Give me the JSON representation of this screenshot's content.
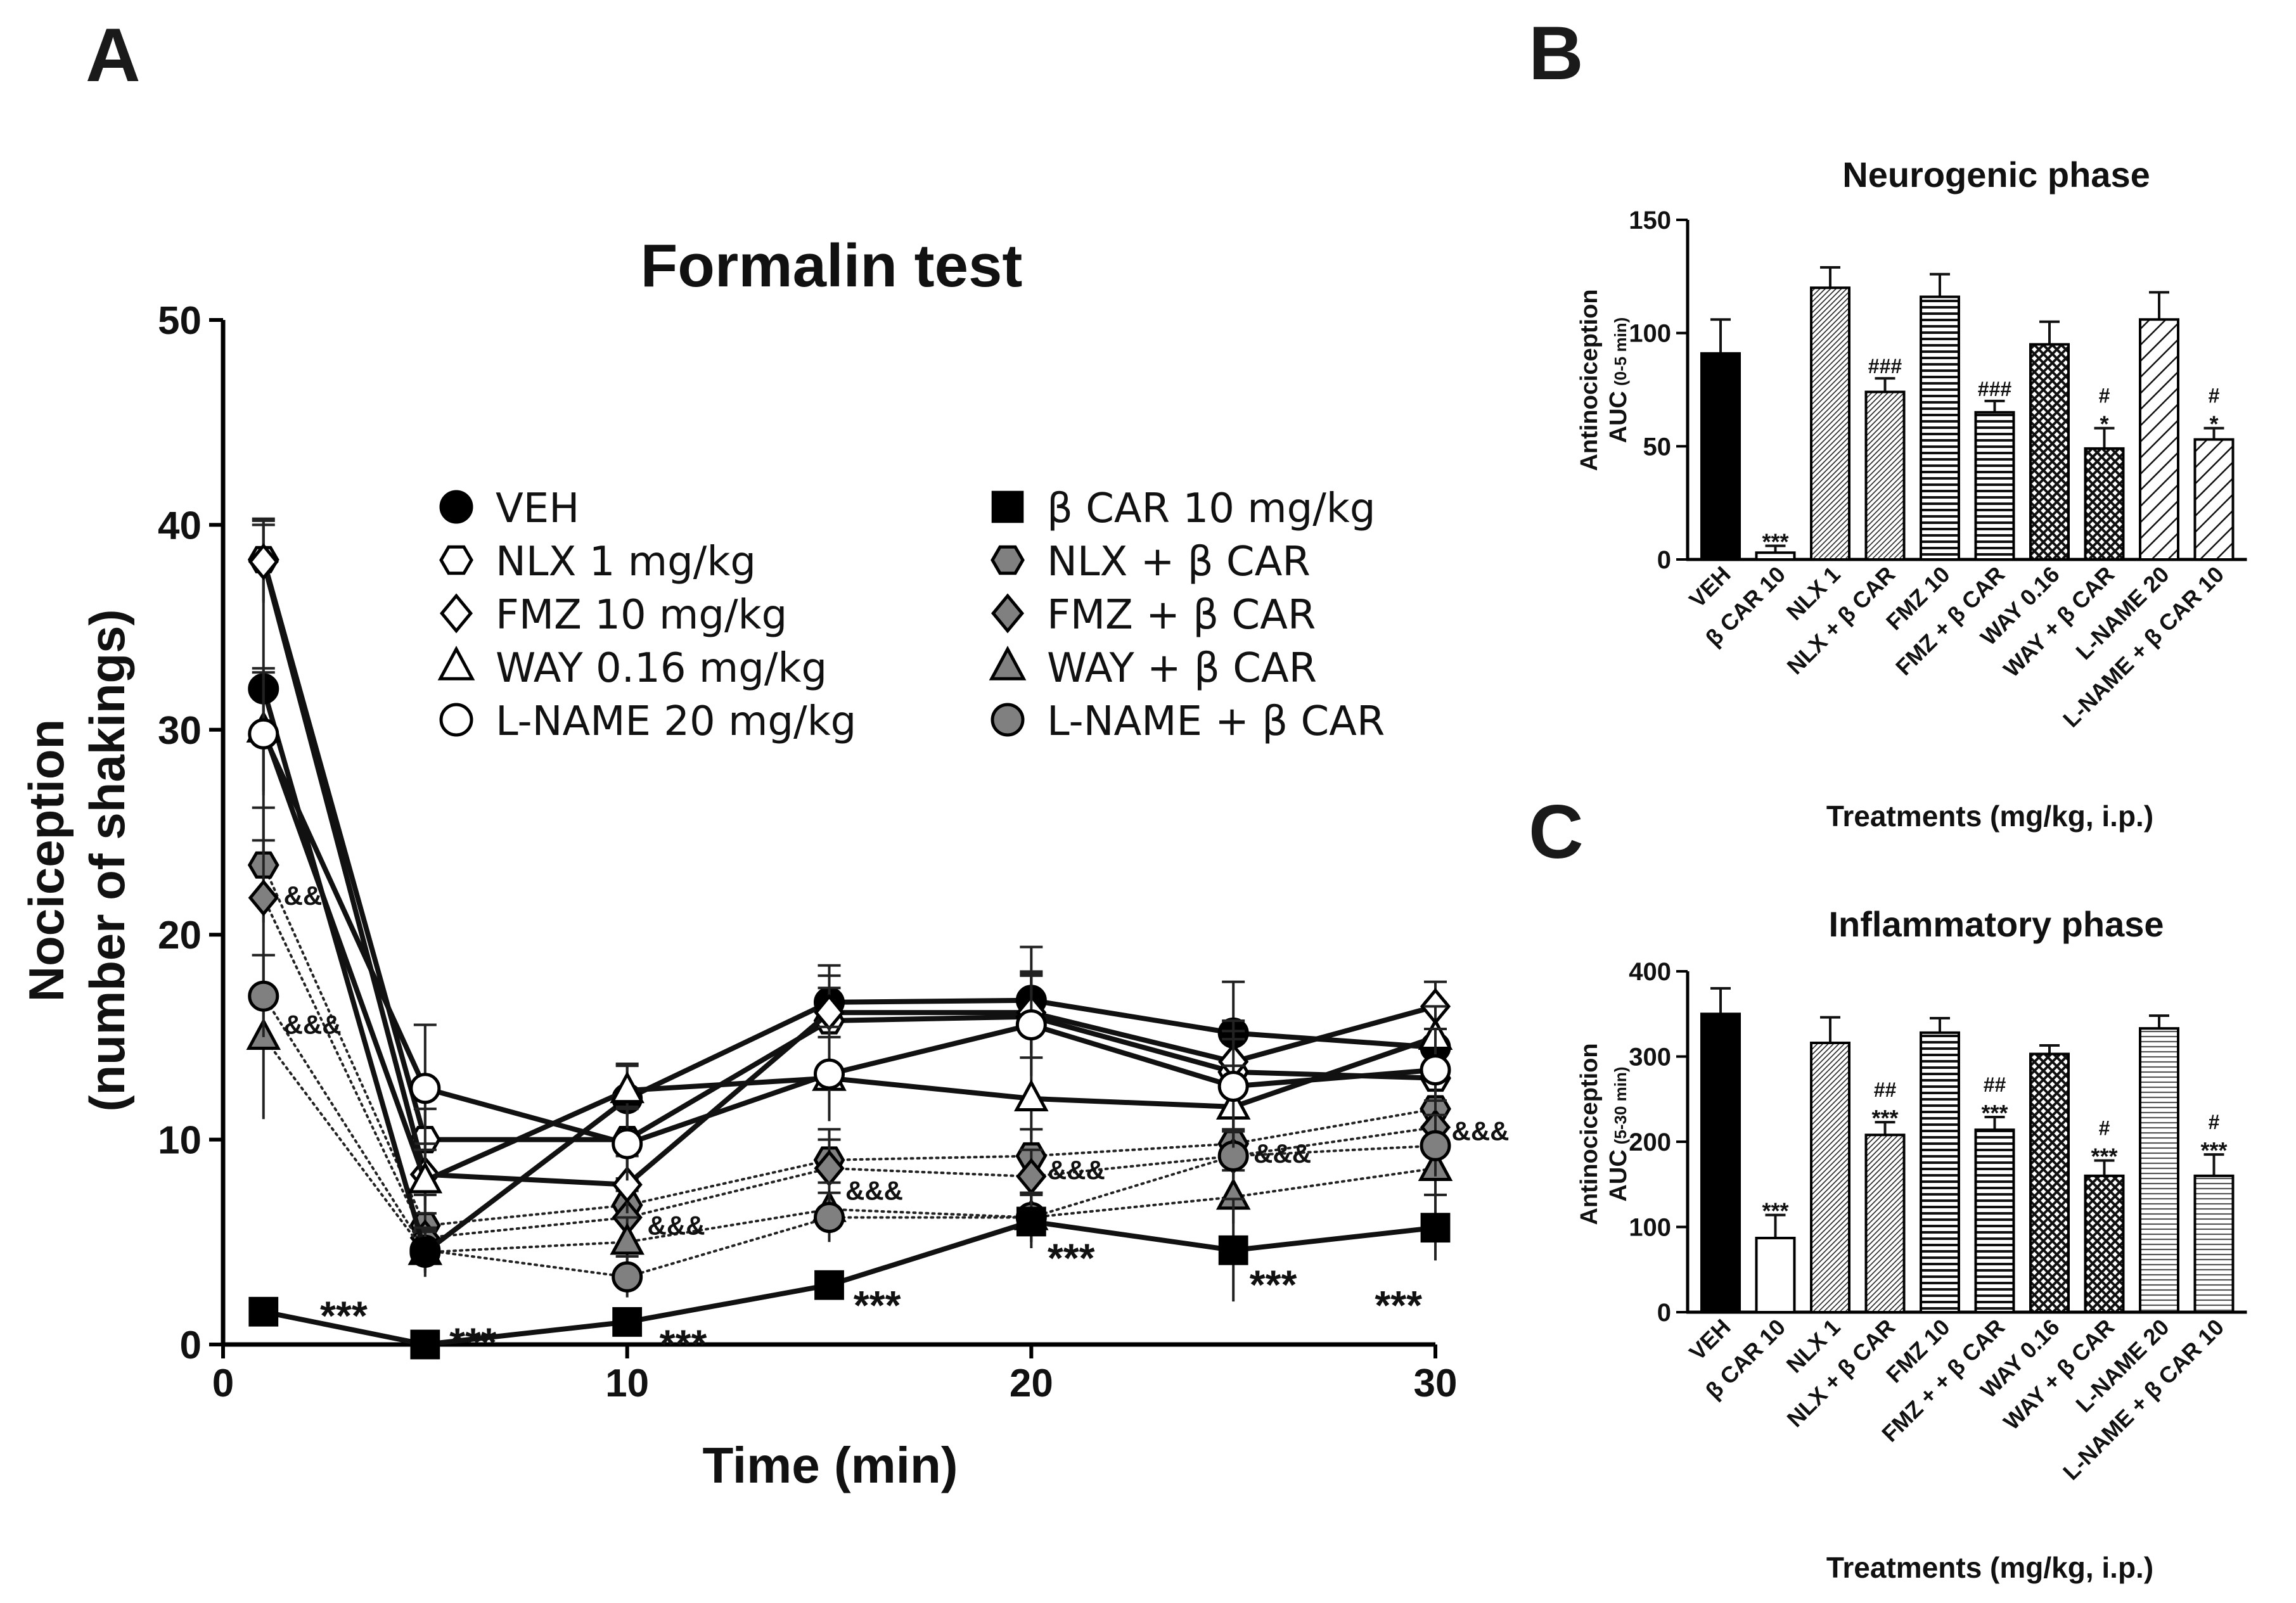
{
  "panels": {
    "A": "A",
    "B": "B",
    "C": "C"
  },
  "chart_data": [
    {
      "type": "line",
      "id": "A",
      "title": "Formalin test",
      "xlabel": "Time (min)",
      "ylabel_line1": "Nociception",
      "ylabel_line2": "(number of shakings)",
      "xlim": [
        0,
        30
      ],
      "ylim": [
        0,
        50
      ],
      "xticks": [
        0,
        10,
        20,
        30
      ],
      "yticks": [
        0,
        10,
        20,
        30,
        40,
        50
      ],
      "x": [
        1,
        5,
        10,
        15,
        20,
        25,
        30
      ],
      "series": [
        {
          "name": "VEH",
          "marker": "circle",
          "fill": "#000000",
          "dotted": false,
          "values": [
            32,
            4.5,
            12,
            16.7,
            16.8,
            15.2,
            14.5
          ],
          "err": [
            8,
            1.2,
            1.6,
            1.8,
            2.6,
            2.5,
            2.2
          ]
        },
        {
          "name": "NLX 1 mg/kg",
          "marker": "hexagon",
          "fill": "#ffffff",
          "dotted": false,
          "values": [
            38.3,
            10,
            10,
            15.8,
            16,
            13.3,
            13
          ],
          "err": [
            2,
            1.5,
            1.5,
            1.6,
            2,
            2,
            1.5
          ]
        },
        {
          "name": "FMZ 10 mg/kg",
          "marker": "diamond",
          "fill": "#ffffff",
          "dotted": false,
          "values": [
            38.2,
            8.3,
            7.8,
            16.2,
            16.2,
            13.8,
            16.5
          ],
          "err": [
            2,
            1.5,
            1.4,
            1.8,
            2,
            2,
            1.2
          ]
        },
        {
          "name": "WAY 0.16 mg/kg",
          "marker": "triangle",
          "fill": "#ffffff",
          "dotted": false,
          "values": [
            30,
            8,
            12.4,
            13,
            12,
            11.6,
            15
          ],
          "err": [
            3,
            1.5,
            1.3,
            2,
            2,
            2,
            1.5
          ]
        },
        {
          "name": "L-NAME 20 mg/kg",
          "marker": "circle",
          "fill": "#ffffff",
          "dotted": false,
          "values": [
            29.8,
            12.5,
            9.8,
            13.2,
            15.6,
            12.6,
            13.4
          ],
          "err": [
            3,
            3.1,
            1.8,
            2.3,
            2.5,
            2.3,
            2
          ]
        },
        {
          "name": "β CAR 10 mg/kg",
          "marker": "square",
          "fill": "#000000",
          "dotted": false,
          "values": [
            1.6,
            0,
            1.1,
            2.9,
            6,
            4.6,
            5.7
          ],
          "err": [
            0.5,
            0.2,
            0.5,
            0.6,
            1.3,
            2.5,
            1.6
          ]
        },
        {
          "name": "NLX + β CAR",
          "marker": "hexagon",
          "fill": "#808080",
          "dotted": true,
          "values": [
            23.4,
            5.8,
            6.8,
            9,
            9.2,
            9.8,
            11.5
          ],
          "err": [
            2.8,
            1.5,
            1.3,
            1.5,
            1.3,
            1.3,
            1.3
          ]
        },
        {
          "name": "FMZ + β CAR",
          "marker": "diamond",
          "fill": "#808080",
          "dotted": true,
          "values": [
            21.8,
            5.2,
            6.2,
            8.6,
            8.2,
            9.2,
            10.6
          ],
          "err": [
            2.8,
            1.2,
            1.3,
            1.4,
            1.3,
            1.3,
            1.3
          ]
        },
        {
          "name": "WAY + β CAR",
          "marker": "triangle",
          "fill": "#808080",
          "dotted": true,
          "values": [
            15,
            4.5,
            5,
            6.6,
            6.2,
            7.2,
            8.6
          ],
          "err": [
            4,
            1,
            1.2,
            1.3,
            1.2,
            1.3,
            1.3
          ]
        },
        {
          "name": "L-NAME + β CAR",
          "marker": "circle",
          "fill": "#808080",
          "dotted": true,
          "values": [
            17,
            4.6,
            3.3,
            6.2,
            6.2,
            9.2,
            9.7
          ],
          "err": [
            2,
            1,
            1,
            1.2,
            1.2,
            1.2,
            1.5
          ]
        }
      ],
      "annotations": [
        {
          "text": "***",
          "x": 2.4,
          "y": 1.6
        },
        {
          "text": "***",
          "x": 5.6,
          "y": 0.3
        },
        {
          "text": "***",
          "x": 10.8,
          "y": 0.2
        },
        {
          "text": "***",
          "x": 15.6,
          "y": 2.1
        },
        {
          "text": "***",
          "x": 20.4,
          "y": 4.4
        },
        {
          "text": "***",
          "x": 25.4,
          "y": 3.1
        },
        {
          "text": "***",
          "x": 28.5,
          "y": 2.1
        },
        {
          "text": "&&",
          "x": 1.5,
          "y": 21.9
        },
        {
          "text": "&&&",
          "x": 1.5,
          "y": 15.6
        },
        {
          "text": "&&&",
          "x": 10.5,
          "y": 5.8
        },
        {
          "text": "&&&",
          "x": 15.4,
          "y": 7.5
        },
        {
          "text": "&&&",
          "x": 20.4,
          "y": 8.5
        },
        {
          "text": "&&&",
          "x": 25.5,
          "y": 9.3
        },
        {
          "text": "&&&",
          "x": 30.4,
          "y": 10.4
        }
      ]
    },
    {
      "type": "bar",
      "id": "B",
      "title": "Neurogenic phase",
      "ylabel_line1": "Antinociception",
      "ylabel_main": "AUC",
      "ylabel_sub": "(0-5 min)",
      "xlabel": "Treatments (mg/kg, i.p.)",
      "ylim": [
        0,
        150
      ],
      "yticks": [
        0,
        50,
        100,
        150
      ],
      "categories": [
        "VEH",
        "β CAR 10",
        "NLX 1",
        "NLX + β CAR",
        "FMZ 10",
        "FMZ + β CAR",
        "WAY 0.16",
        "WAY + β CAR",
        "L-NAME 20",
        "L-NAME + β CAR 10"
      ],
      "values": [
        91,
        3,
        120,
        74,
        116,
        65,
        95,
        49,
        106,
        53
      ],
      "err": [
        15,
        3,
        9,
        6,
        10,
        5,
        10,
        9,
        12,
        5
      ],
      "patterns": [
        "solid",
        "empty",
        "densediag",
        "densediag",
        "horiz",
        "horiz",
        "cross",
        "cross",
        "diag",
        "diag"
      ],
      "labels": [
        "",
        "***",
        "",
        "###",
        "",
        "###",
        "",
        "#|*",
        "",
        "#|*"
      ]
    },
    {
      "type": "bar",
      "id": "C",
      "title": "Inflammatory phase",
      "ylabel_line1": "Antinociception",
      "ylabel_main": "AUC",
      "ylabel_sub": "(5-30 min)",
      "xlabel": "Treatments (mg/kg, i.p.)",
      "ylim": [
        0,
        400
      ],
      "yticks": [
        0,
        100,
        200,
        300,
        400
      ],
      "categories": [
        "VEH",
        "β CAR 10",
        "NLX 1",
        "NLX + β CAR",
        "FMZ 10",
        "FMZ + + β CAR",
        "WAY 0.16",
        "WAY + β CAR",
        "L-NAME 20",
        "L-NAME + β CAR 10"
      ],
      "values": [
        350,
        87,
        316,
        208,
        328,
        214,
        303,
        160,
        333,
        160
      ],
      "err": [
        30,
        27,
        30,
        15,
        17,
        15,
        10,
        18,
        15,
        25
      ],
      "patterns": [
        "solid",
        "empty",
        "densediag",
        "densediag",
        "horiz",
        "horiz",
        "cross",
        "cross",
        "horizthin",
        "horizthin"
      ],
      "labels": [
        "",
        "***",
        "",
        "##|***",
        "",
        "##|***",
        "",
        "#|***",
        "",
        "#|***"
      ]
    }
  ]
}
